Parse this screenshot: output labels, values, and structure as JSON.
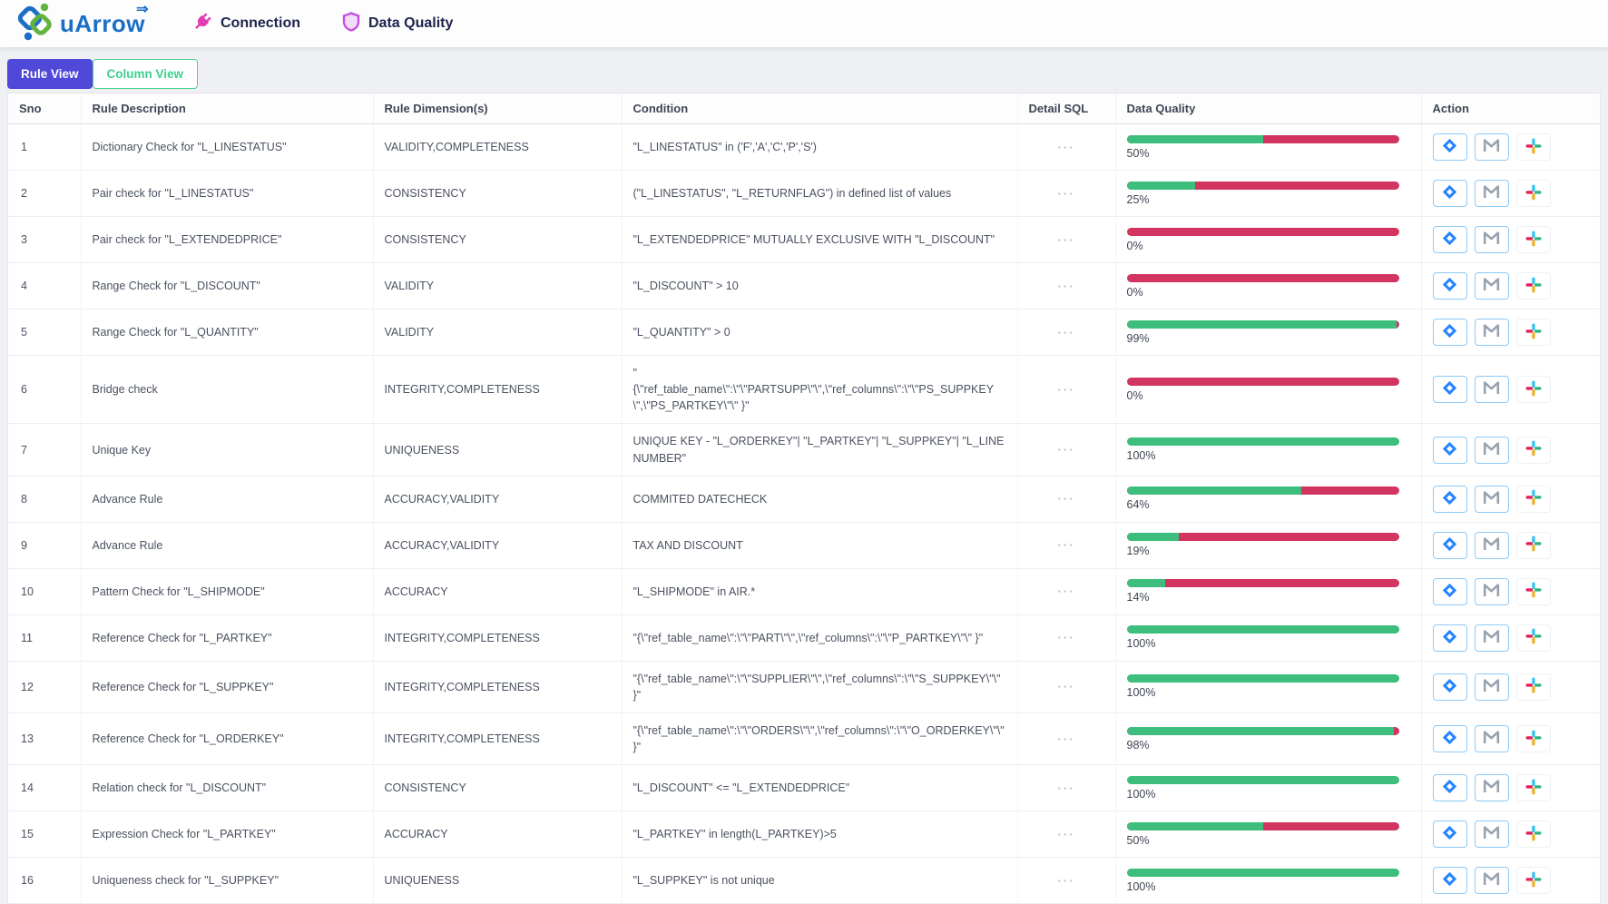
{
  "header": {
    "brand": "uArrow",
    "brand_arrow": "⇒",
    "logo_icon": "uarrow-logo-icon",
    "nav": [
      {
        "label": "Connection",
        "icon": "plug-icon"
      },
      {
        "label": "Data Quality",
        "icon": "shield-icon"
      }
    ]
  },
  "tabs": [
    {
      "label": "Rule View",
      "active": true
    },
    {
      "label": "Column View",
      "active": false
    }
  ],
  "table": {
    "columns": [
      "Sno",
      "Rule Description",
      "Rule Dimension(s)",
      "Condition",
      "Detail SQL",
      "Data Quality",
      "Action"
    ],
    "detail_sql_ellipsis": "···",
    "action_icons": [
      "jira-icon",
      "gmail-icon",
      "slack-icon"
    ],
    "rows": [
      {
        "sno": "1",
        "description": "Dictionary Check for \"L_LINESTATUS\"",
        "dimensions": "VALIDITY,COMPLETENESS",
        "condition": "\"L_LINESTATUS\" in ('F','A','C','P','S')",
        "quality_pct": 50,
        "quality_label": "50%"
      },
      {
        "sno": "2",
        "description": "Pair check for \"L_LINESTATUS\"",
        "dimensions": "CONSISTENCY",
        "condition": "(\"L_LINESTATUS\", \"L_RETURNFLAG\") in defined list of values",
        "quality_pct": 25,
        "quality_label": "25%"
      },
      {
        "sno": "3",
        "description": "Pair check for \"L_EXTENDEDPRICE\"",
        "dimensions": "CONSISTENCY",
        "condition": "\"L_EXTENDEDPRICE\" MUTUALLY EXCLUSIVE WITH \"L_DISCOUNT\"",
        "quality_pct": 0,
        "quality_label": "0%"
      },
      {
        "sno": "4",
        "description": "Range Check for \"L_DISCOUNT\"",
        "dimensions": "VALIDITY",
        "condition": "\"L_DISCOUNT\" > 10",
        "quality_pct": 0,
        "quality_label": "0%"
      },
      {
        "sno": "5",
        "description": "Range Check for \"L_QUANTITY\"",
        "dimensions": "VALIDITY",
        "condition": "\"L_QUANTITY\" > 0",
        "quality_pct": 99,
        "quality_label": "99%"
      },
      {
        "sno": "6",
        "description": "Bridge check",
        "dimensions": "INTEGRITY,COMPLETENESS",
        "condition": "\"\n{\\\"ref_table_name\\\":\\\"\\\"PARTSUPP\\\"\\\",\\\"ref_columns\\\":\\\"\\\"PS_SUPPKEY\\\",\\\"PS_PARTKEY\\\"\\\" }\"",
        "quality_pct": 0,
        "quality_label": "0%"
      },
      {
        "sno": "7",
        "description": "Unique Key",
        "dimensions": "UNIQUENESS",
        "condition": "UNIQUE KEY - \"L_ORDERKEY\"| \"L_PARTKEY\"| \"L_SUPPKEY\"| \"L_LINENUMBER\"",
        "quality_pct": 100,
        "quality_label": "100%"
      },
      {
        "sno": "8",
        "description": "Advance Rule",
        "dimensions": "ACCURACY,VALIDITY",
        "condition": "COMMITED DATECHECK",
        "quality_pct": 64,
        "quality_label": "64%"
      },
      {
        "sno": "9",
        "description": "Advance Rule",
        "dimensions": "ACCURACY,VALIDITY",
        "condition": "TAX AND DISCOUNT",
        "quality_pct": 19,
        "quality_label": "19%"
      },
      {
        "sno": "10",
        "description": "Pattern Check for \"L_SHIPMODE\"",
        "dimensions": "ACCURACY",
        "condition": "\"L_SHIPMODE\" in AIR.*",
        "quality_pct": 14,
        "quality_label": "14%"
      },
      {
        "sno": "11",
        "description": "Reference Check for \"L_PARTKEY\"",
        "dimensions": "INTEGRITY,COMPLETENESS",
        "condition": "\"{\\\"ref_table_name\\\":\\\"\\\"PART\\\"\\\",\\\"ref_columns\\\":\\\"\\\"P_PARTKEY\\\"\\\" }\"",
        "quality_pct": 100,
        "quality_label": "100%"
      },
      {
        "sno": "12",
        "description": "Reference Check for \"L_SUPPKEY\"",
        "dimensions": "INTEGRITY,COMPLETENESS",
        "condition": "\"{\\\"ref_table_name\\\":\\\"\\\"SUPPLIER\\\"\\\",\\\"ref_columns\\\":\\\"\\\"S_SUPPKEY\\\"\\\" }\"",
        "quality_pct": 100,
        "quality_label": "100%"
      },
      {
        "sno": "13",
        "description": "Reference Check for \"L_ORDERKEY\"",
        "dimensions": "INTEGRITY,COMPLETENESS",
        "condition": "\"{\\\"ref_table_name\\\":\\\"\\\"ORDERS\\\"\\\",\\\"ref_columns\\\":\\\"\\\"O_ORDERKEY\\\"\\\" }\"",
        "quality_pct": 98,
        "quality_label": "98%"
      },
      {
        "sno": "14",
        "description": "Relation check for \"L_DISCOUNT\"",
        "dimensions": "CONSISTENCY",
        "condition": "\"L_DISCOUNT\" <= \"L_EXTENDEDPRICE\"",
        "quality_pct": 100,
        "quality_label": "100%"
      },
      {
        "sno": "15",
        "description": "Expression Check for \"L_PARTKEY\"",
        "dimensions": "ACCURACY",
        "condition": "\"L_PARTKEY\" in length(L_PARTKEY)>5",
        "quality_pct": 50,
        "quality_label": "50%"
      },
      {
        "sno": "16",
        "description": "Uniqueness check for \"L_SUPPKEY\"",
        "dimensions": "UNIQUENESS",
        "condition": "\"L_SUPPKEY\" is not unique",
        "quality_pct": 100,
        "quality_label": "100%"
      }
    ]
  },
  "colors": {
    "tab_active_bg": "#4f48d8",
    "tab_inactive_text": "#3ecf8e",
    "bar_green": "#3dbe7c",
    "bar_red": "#d2355f",
    "brand_blue": "#1b6ec6",
    "brand_green": "#62b43f",
    "plug_pink": "#e23bb4",
    "shield_purple": "#c44fe0",
    "jira_blue": "#2684ff",
    "slack_blue": "#36C5F0",
    "slack_green": "#2EB67D",
    "slack_yellow": "#ECB22E",
    "slack_red": "#E01E5A"
  }
}
